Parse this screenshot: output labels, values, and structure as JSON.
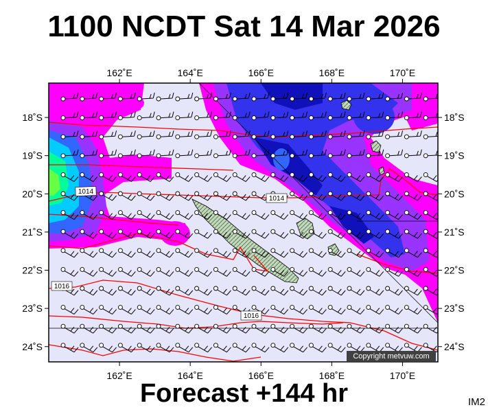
{
  "title": "1100 NCDT Sat 14 Mar 2026",
  "forecast": "Forecast +144 hr",
  "image_code": "IM2",
  "copyright": "Copyright metvuw.com",
  "map": {
    "lon_range": [
      160.0,
      171.0
    ],
    "lat_range": [
      -24.4,
      -17.1
    ],
    "lon_ticks": [
      {
        "value": 162,
        "label": "162˚E"
      },
      {
        "value": 164,
        "label": "164˚E"
      },
      {
        "value": 166,
        "label": "166˚E"
      },
      {
        "value": 168,
        "label": "168˚E"
      },
      {
        "value": 170,
        "label": "170˚E"
      }
    ],
    "lat_ticks": [
      {
        "value": -18,
        "label": "18˚S"
      },
      {
        "value": -19,
        "label": "19˚S"
      },
      {
        "value": -20,
        "label": "20˚S"
      },
      {
        "value": -21,
        "label": "21˚S"
      },
      {
        "value": -22,
        "label": "22˚S"
      },
      {
        "value": -23,
        "label": "23˚S"
      },
      {
        "value": -24,
        "label": "24˚S"
      }
    ],
    "isobar_labels": [
      "1014",
      "1014",
      "1016",
      "1016"
    ],
    "colors": {
      "background": "#e6e6fa",
      "magenta": "#ff00ff",
      "purple": "#9933ff",
      "blue": "#2222dd",
      "deep_blue": "#0000aa",
      "cyan": "#00ccff",
      "green": "#00ff88",
      "isobar": "#ff0000",
      "land": "#b8d0b0"
    }
  }
}
